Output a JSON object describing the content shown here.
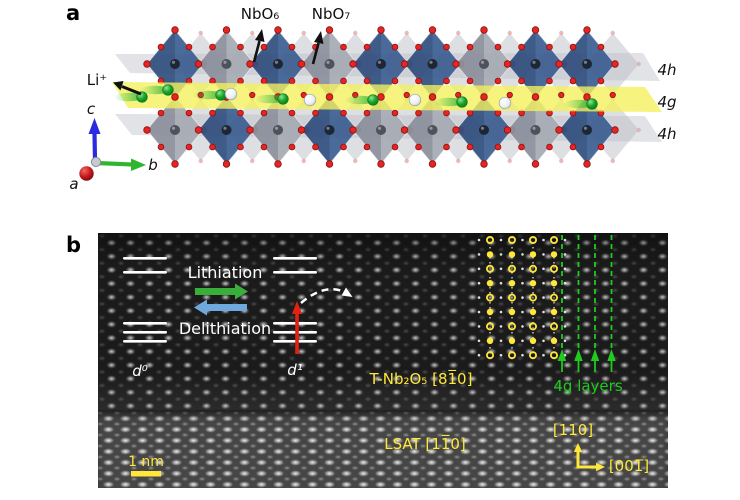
{
  "panel_a": {
    "label": "a",
    "nbo6_label": "NbO₆",
    "nbo7_label": "NbO₇",
    "li_label": "Li⁺",
    "layer_top_label": "4h",
    "layer_mid_label": "4g",
    "layer_bottom_label": "4h",
    "axis_a_label": "a",
    "axis_b_label": "b",
    "axis_c_label": "c",
    "colors": {
      "nbo7_polyhedron_blue": "#3d5f92",
      "nbo6_polyhedron_grey": "#a6abb4",
      "oxygen_red": "#e42522",
      "lithium_green": "#1ca32c",
      "li_plane_yellow": "#f4f05e",
      "plane_grey": "#b9bdc4",
      "axis_a_red": "#c4161c",
      "axis_b_green": "#2fb52f",
      "axis_c_blue": "#2a2ae0"
    }
  },
  "panel_b": {
    "label": "b",
    "lithiation_label": "Lithiation",
    "delithiation_label": "Delithiation",
    "d0_label": "d⁰",
    "d1_label": "d¹",
    "film_label": "T-Nb₂O₅ [81̅0]",
    "substrate_label": "LSAT [11̅0]",
    "layers_label": "4g layers",
    "direction_up_label": "[110]",
    "direction_right_label": "[001̅]",
    "scale_bar_label": "1 nm",
    "colors": {
      "lithiation_arrow_green": "#3aae3a",
      "delithiation_arrow_blue": "#6fa8dc",
      "ion_path_arrow_red": "#e02311",
      "annotation_yellow": "#ffe83a",
      "annotation_green": "#1ecb1e",
      "annotation_white": "#ffffff"
    }
  }
}
